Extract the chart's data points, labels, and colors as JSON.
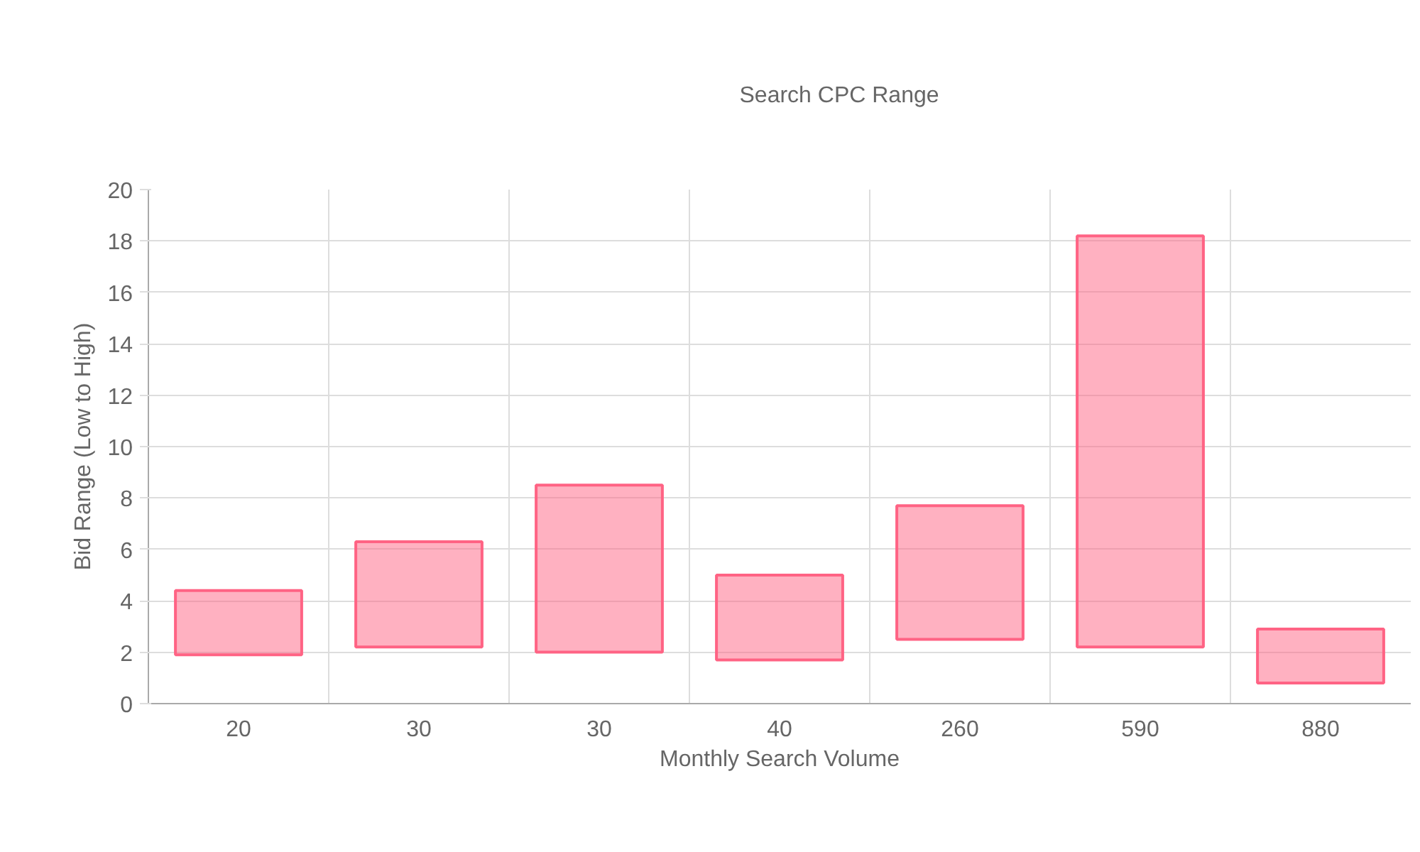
{
  "chart_data": {
    "type": "bar",
    "xlabel": "Monthly Search Volume",
    "ylabel": "Bid Range (Low to High)",
    "categories": [
      "20",
      "30",
      "30",
      "40",
      "260",
      "590",
      "880"
    ],
    "series": [
      {
        "name": "Search CPC Range",
        "color": "#ff6384",
        "values": [
          2.5,
          4.1,
          6.5,
          3.3,
          5.2,
          16.0,
          2.1
        ],
        "base": [
          1.9,
          2.2,
          2.0,
          1.7,
          2.5,
          2.2,
          0.8
        ]
      }
    ],
    "ylim": [
      0,
      20
    ],
    "yticks": [
      0,
      2,
      4,
      6,
      8,
      10,
      12,
      14,
      16,
      18,
      20
    ],
    "grid": true,
    "legend": "top"
  }
}
